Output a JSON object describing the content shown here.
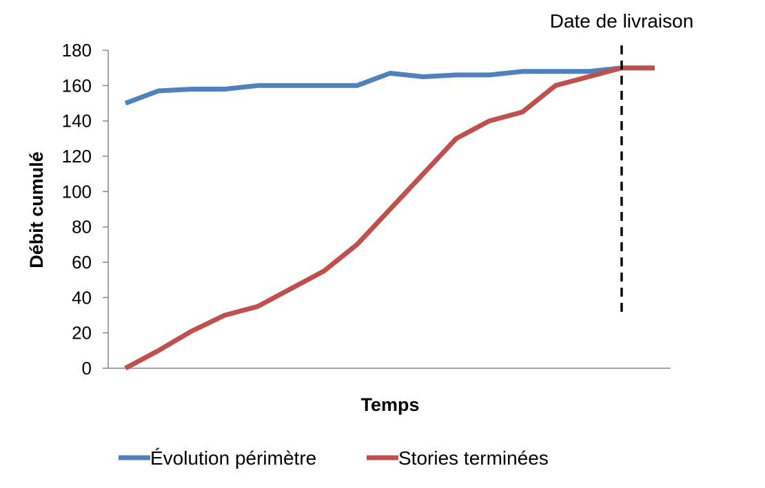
{
  "chart_data": {
    "type": "line",
    "title": "",
    "xlabel": "Temps",
    "ylabel": "Débit cumulé",
    "ylim": [
      0,
      180
    ],
    "yticks": [
      0,
      20,
      40,
      60,
      80,
      100,
      120,
      140,
      160,
      180
    ],
    "x": [
      1,
      2,
      3,
      4,
      5,
      6,
      7,
      8,
      9,
      10,
      11,
      12,
      13,
      14,
      15,
      16,
      17
    ],
    "series": [
      {
        "name": "Évolution périmètre",
        "color": "#4f81bd",
        "values": [
          150,
          157,
          158,
          158,
          160,
          160,
          160,
          160,
          167,
          165,
          166,
          166,
          168,
          168,
          168,
          170,
          170
        ]
      },
      {
        "name": "Stories terminées",
        "color": "#c0504d",
        "values": [
          0,
          10,
          21,
          30,
          35,
          45,
          55,
          70,
          90,
          110,
          130,
          140,
          145,
          160,
          165,
          170,
          170
        ]
      }
    ],
    "marker": {
      "label": "Date de livraison",
      "x": 16,
      "style": "dashed",
      "color": "#000000"
    },
    "grid": false,
    "legend": "bottom"
  }
}
